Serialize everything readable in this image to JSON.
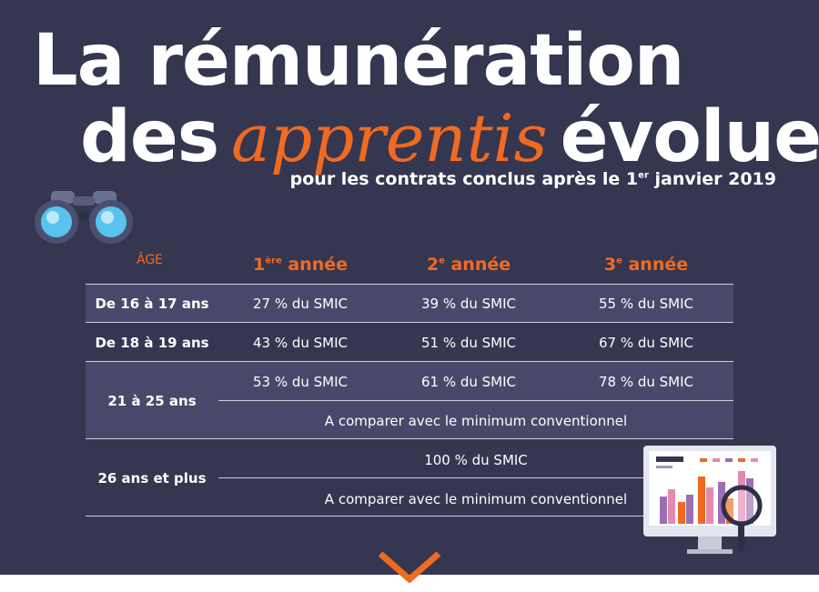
{
  "title": {
    "line1": "La rémunération",
    "line2_before": "des",
    "line2_script": "apprentis",
    "line2_after": "évolue",
    "subtitle_before": "pour les contrats conclus après le 1",
    "subtitle_sup": "er",
    "subtitle_after": " janvier 2019"
  },
  "table": {
    "age_header": "ÂGE",
    "year_headers": [
      {
        "num": "1",
        "sup": "ère",
        "label": " année"
      },
      {
        "num": "2",
        "sup": "e",
        "label": " année"
      },
      {
        "num": "3",
        "sup": "e",
        "label": " année"
      }
    ],
    "rows": [
      {
        "age": "De 16 à 17 ans",
        "values": [
          "27 % du SMIC",
          "39 % du SMIC",
          "55 %  du SMIC"
        ]
      },
      {
        "age": "De 18 à 19 ans",
        "values": [
          "43 % du SMIC",
          "51 % du SMIC",
          "67 % du SMIC"
        ]
      },
      {
        "age": "21 à 25 ans",
        "values": [
          "53 %  du SMIC",
          "61 % du SMIC",
          "78 % du SMIC"
        ],
        "note": "A comparer avec le minimum conventionnel"
      },
      {
        "age": "26 ans et plus",
        "value": "100 % du SMIC",
        "note": "A comparer avec le minimum conventionnel"
      }
    ]
  },
  "colors": {
    "background": "#353650",
    "accent": "#f06a22",
    "row_shade": "#48496a"
  },
  "icons": {
    "binoculars": "binoculars-icon",
    "monitor": "monitor-chart-icon",
    "chevron": "chevron-down-icon"
  }
}
